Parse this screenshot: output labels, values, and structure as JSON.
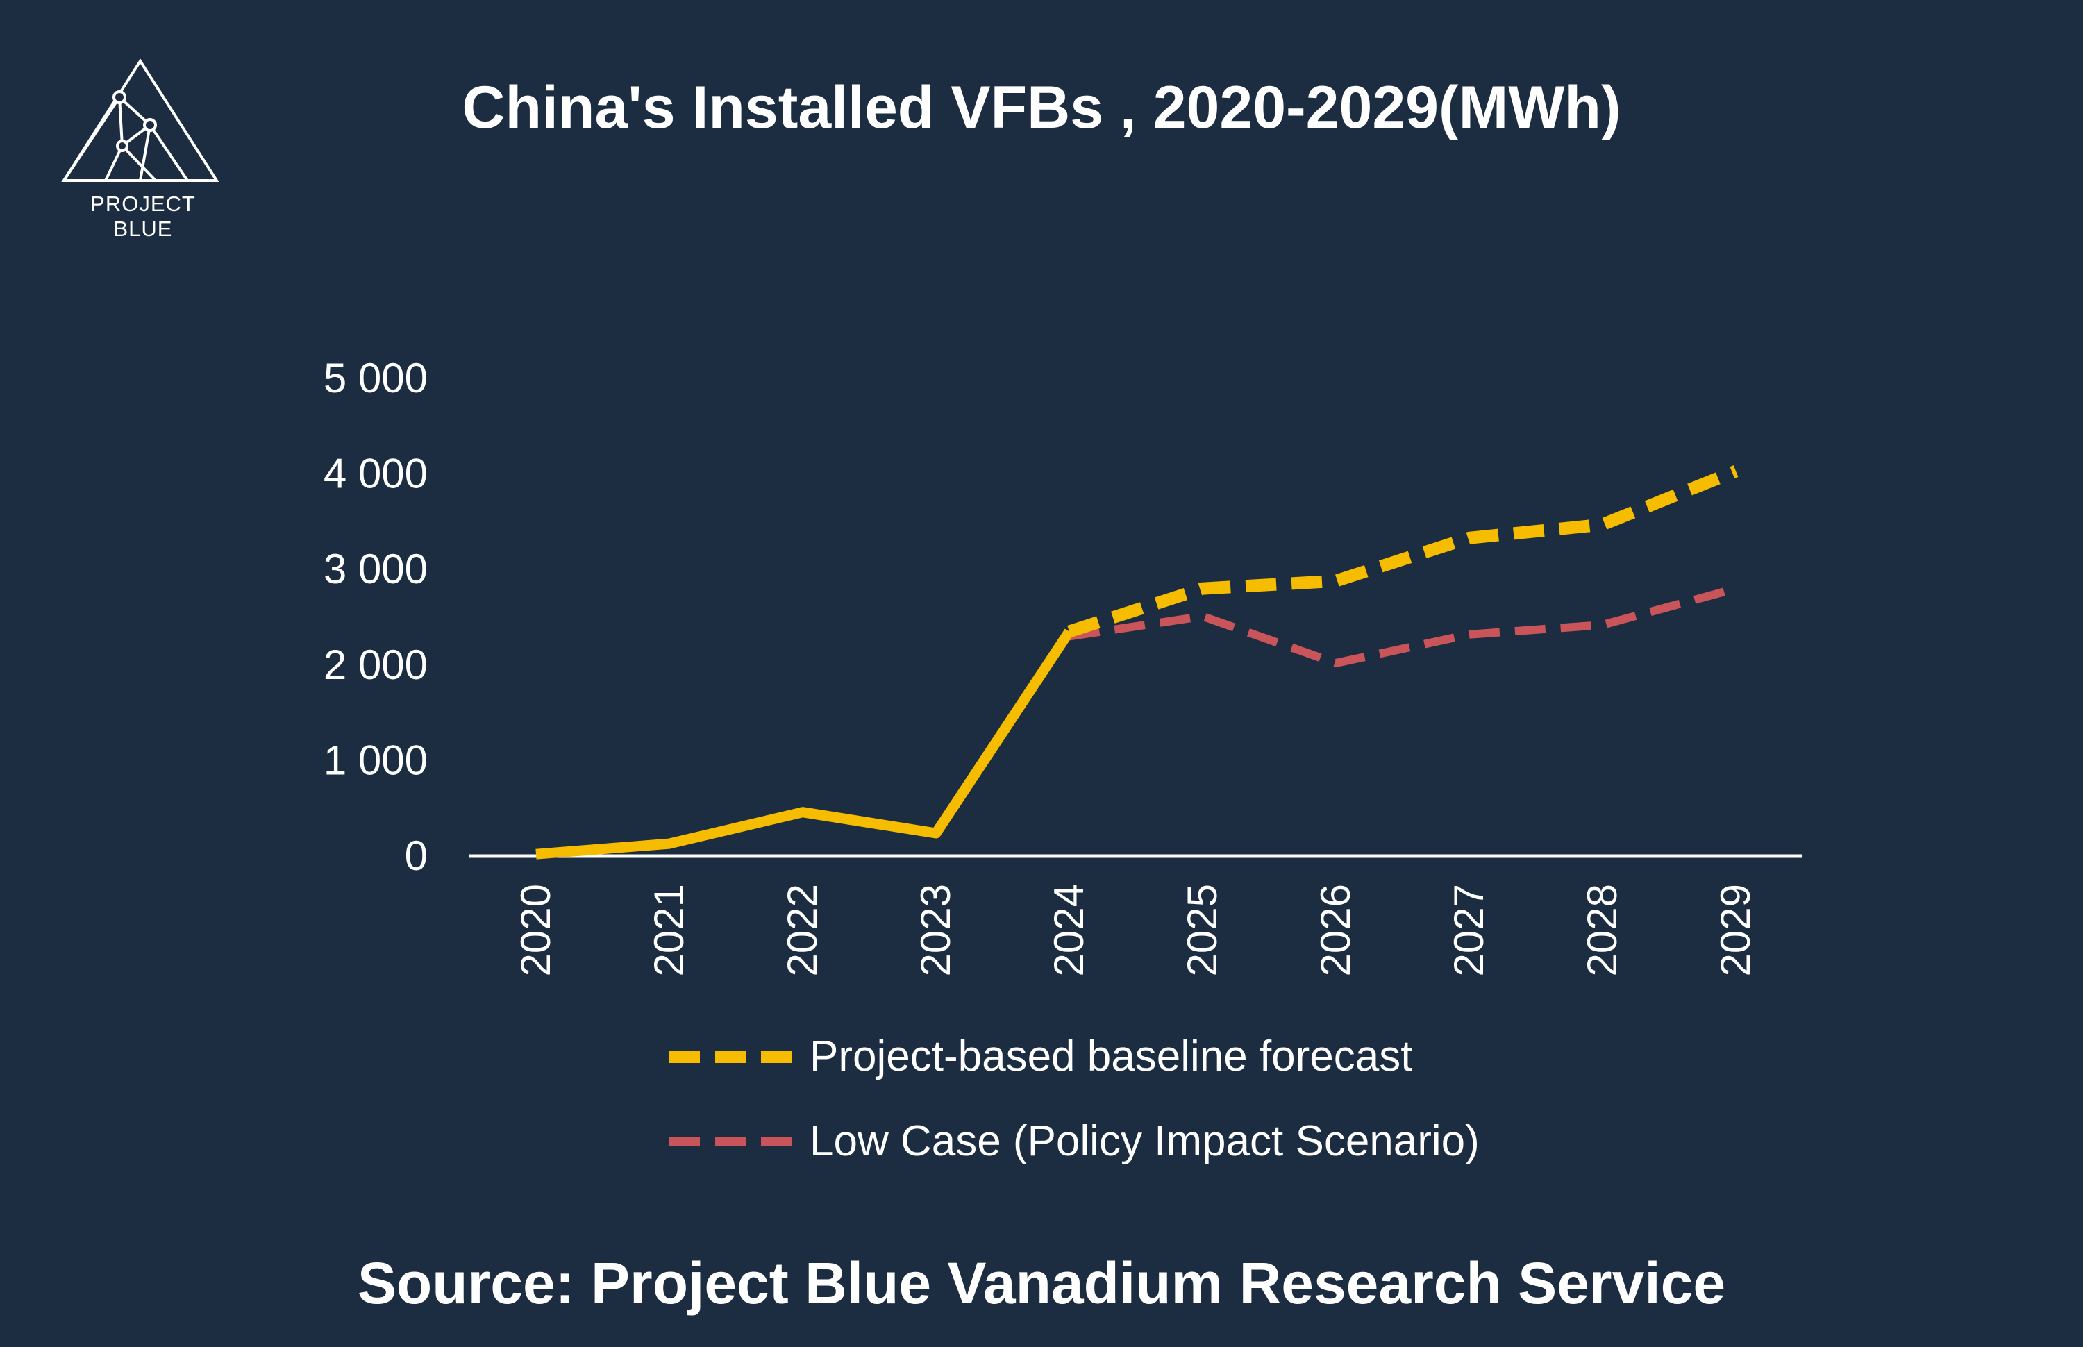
{
  "logo": {
    "text": "PROJECT BLUE"
  },
  "colors": {
    "background": "#1c2d41",
    "baseline": "#f5bc00",
    "low_case": "#c9545a",
    "axis": "#ffffff"
  },
  "chart_data": {
    "type": "line",
    "title": "China's Installed VFBs , 2020-2029(MWh)",
    "xlabel": "",
    "ylabel": "",
    "x": [
      "2020",
      "2021",
      "2022",
      "2023",
      "2024",
      "2025",
      "2026",
      "2027",
      "2028",
      "2029"
    ],
    "ylim": [
      0,
      5000
    ],
    "yticks": [
      {
        "value": 0,
        "label": "0"
      },
      {
        "value": 1000,
        "label": "1 000"
      },
      {
        "value": 2000,
        "label": "2 000"
      },
      {
        "value": 3000,
        "label": "3 000"
      },
      {
        "value": 4000,
        "label": "4 000"
      },
      {
        "value": 5000,
        "label": "5 000"
      }
    ],
    "grid": false,
    "legend_position": "bottom",
    "series": [
      {
        "key": "historical",
        "style": "solid",
        "color": "#f5bc00",
        "x": [
          "2020",
          "2021",
          "2022",
          "2023",
          "2024"
        ],
        "values": [
          20,
          130,
          460,
          240,
          2350
        ]
      },
      {
        "key": "baseline",
        "name": "Project-based baseline forecast",
        "style": "dashed",
        "color": "#f5bc00",
        "x": [
          "2024",
          "2025",
          "2026",
          "2027",
          "2028",
          "2029"
        ],
        "values": [
          2350,
          2800,
          2880,
          3330,
          3470,
          4030
        ]
      },
      {
        "key": "low_case",
        "name": "Low Case (Policy Impact Scenario)",
        "style": "dashed",
        "color": "#c9545a",
        "x": [
          "2024",
          "2025",
          "2026",
          "2027",
          "2028",
          "2029"
        ],
        "values": [
          2300,
          2510,
          2020,
          2320,
          2420,
          2800
        ]
      }
    ]
  },
  "source": "Source: Project Blue Vanadium Research Service"
}
